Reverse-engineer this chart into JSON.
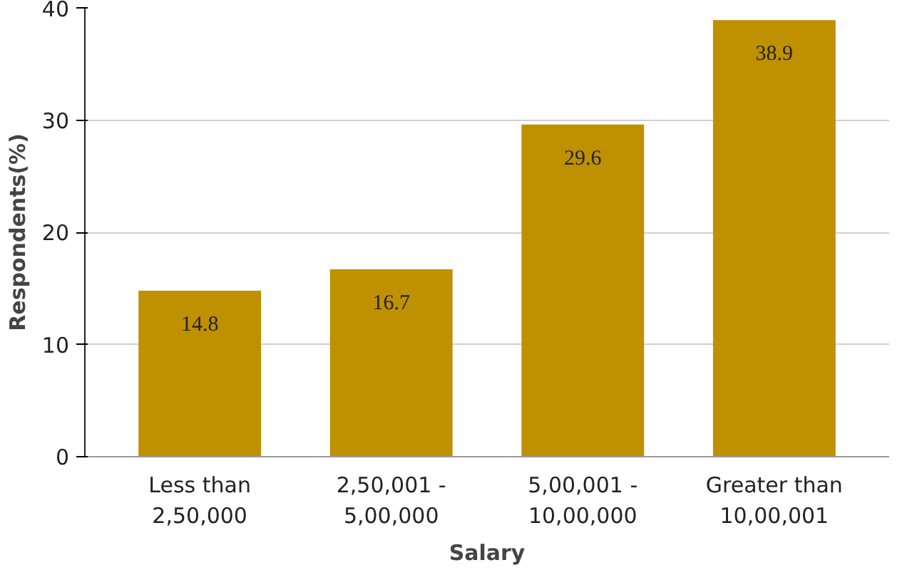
{
  "chart_data": {
    "type": "bar",
    "xlabel": "Salary",
    "ylabel": "Respondents(%)",
    "categories": [
      "Less than\n2,50,000",
      "2,50,001 -\n5,00,000",
      "5,00,001 -\n10,00,000",
      "Greater than\n10,00,001"
    ],
    "values": [
      14.8,
      16.7,
      29.6,
      38.9
    ],
    "color": "#bf9000",
    "ylim": [
      0,
      40
    ],
    "yticks": [
      0,
      10,
      20,
      30,
      40
    ],
    "grid": "y",
    "data_labels": true
  }
}
